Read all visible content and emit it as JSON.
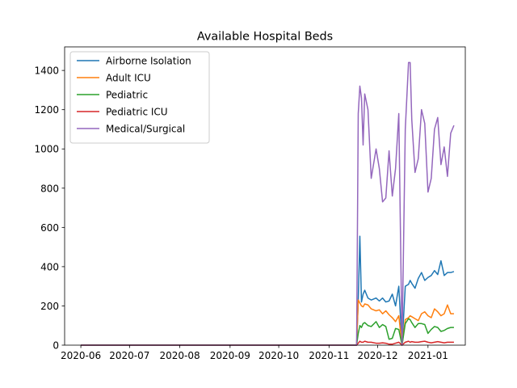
{
  "chart_data": {
    "type": "line",
    "title": "Available Hospital Beds",
    "xlabel": "",
    "ylabel": "",
    "x_ticks": [
      "2020-06",
      "2020-07",
      "2020-08",
      "2020-09",
      "2020-10",
      "2020-11",
      "2020-12",
      "2021-01"
    ],
    "y_ticks": [
      "0",
      "200",
      "400",
      "600",
      "800",
      "1000",
      "1200",
      "1400"
    ],
    "xlim": [
      "2020-05-22",
      "2021-01-24"
    ],
    "ylim": [
      0,
      1520
    ],
    "grid": false,
    "legend_position": "upper-left",
    "x": [
      "2020-06-01",
      "2020-11-18",
      "2020-11-19",
      "2020-11-20",
      "2020-11-21",
      "2020-11-22",
      "2020-11-23",
      "2020-11-25",
      "2020-11-27",
      "2020-11-30",
      "2020-12-02",
      "2020-12-04",
      "2020-12-06",
      "2020-12-08",
      "2020-12-10",
      "2020-12-12",
      "2020-12-14",
      "2020-12-16",
      "2020-12-18",
      "2020-12-20",
      "2020-12-21",
      "2020-12-22",
      "2020-12-24",
      "2020-12-26",
      "2020-12-28",
      "2020-12-30",
      "2021-01-01",
      "2021-01-03",
      "2021-01-05",
      "2021-01-07",
      "2021-01-09",
      "2021-01-11",
      "2021-01-13",
      "2021-01-15",
      "2021-01-17"
    ],
    "series": [
      {
        "name": "Airborne Isolation",
        "color": "#1f77b4",
        "values": [
          0,
          0,
          230,
          555,
          220,
          260,
          280,
          240,
          230,
          240,
          225,
          240,
          220,
          225,
          260,
          200,
          300,
          0,
          300,
          310,
          330,
          315,
          290,
          340,
          370,
          330,
          345,
          355,
          380,
          360,
          430,
          355,
          370,
          370,
          375
        ]
      },
      {
        "name": "Adult ICU",
        "color": "#ff7f0e",
        "values": [
          0,
          0,
          230,
          215,
          200,
          195,
          210,
          205,
          185,
          175,
          180,
          160,
          175,
          155,
          140,
          120,
          150,
          0,
          130,
          140,
          150,
          145,
          135,
          125,
          160,
          170,
          150,
          140,
          185,
          170,
          150,
          160,
          205,
          160,
          160
        ]
      },
      {
        "name": "Pediatric",
        "color": "#2ca02c",
        "values": [
          0,
          0,
          60,
          100,
          90,
          110,
          115,
          100,
          95,
          120,
          90,
          105,
          95,
          30,
          35,
          85,
          80,
          0,
          110,
          135,
          130,
          115,
          90,
          110,
          110,
          105,
          60,
          80,
          95,
          90,
          70,
          75,
          85,
          90,
          90
        ]
      },
      {
        "name": "Pediatric ICU",
        "color": "#d62728",
        "values": [
          0,
          0,
          10,
          20,
          15,
          15,
          20,
          15,
          15,
          10,
          10,
          12,
          10,
          5,
          5,
          10,
          15,
          0,
          15,
          20,
          15,
          18,
          15,
          15,
          18,
          20,
          15,
          12,
          15,
          18,
          15,
          12,
          15,
          15,
          15
        ]
      },
      {
        "name": "Medical/Surgical",
        "color": "#9467bd",
        "values": [
          0,
          0,
          1180,
          1320,
          1260,
          1020,
          1280,
          1200,
          850,
          1000,
          900,
          730,
          750,
          990,
          760,
          900,
          1180,
          0,
          1100,
          1440,
          1440,
          1150,
          880,
          950,
          1200,
          1130,
          780,
          850,
          1100,
          1160,
          920,
          1010,
          860,
          1080,
          1120
        ]
      }
    ]
  }
}
